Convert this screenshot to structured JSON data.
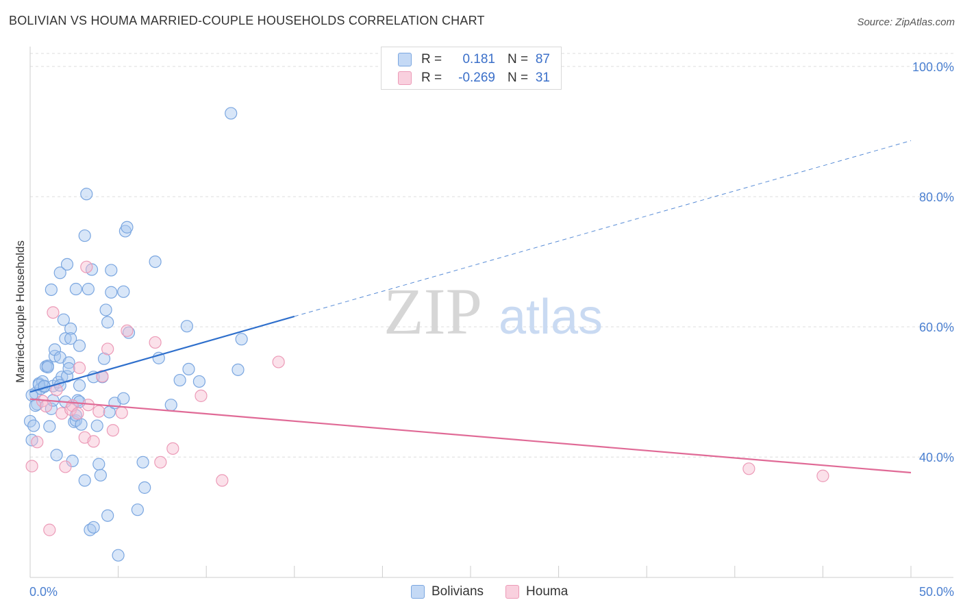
{
  "header": {
    "title": "BOLIVIAN VS HOUMA MARRIED-COUPLE HOUSEHOLDS CORRELATION CHART",
    "source": "Source: ZipAtlas.com"
  },
  "legend": {
    "rows": [
      {
        "r_label": "R =",
        "r_value": "0.181",
        "n_label": "N =",
        "n_value": "87"
      },
      {
        "r_label": "R =",
        "r_value": "-0.269",
        "n_label": "N =",
        "n_value": "31"
      }
    ]
  },
  "bottom_legend": {
    "items": [
      "Bolivians",
      "Houma"
    ]
  },
  "watermark": {
    "zip": "ZIP",
    "atlas": "atlas"
  },
  "colors": {
    "bolivians_fill": "#a9c8f0",
    "bolivians_stroke": "#7aa6e0",
    "bolivians_line": "#2e6fcc",
    "houma_fill": "#f6bcd0",
    "houma_stroke": "#ec9ab7",
    "houma_line": "#e06a96",
    "grid": "#dddddd",
    "tick_text": "#4a7fd0"
  },
  "chart_data": {
    "type": "scatter",
    "title": "BOLIVIAN VS HOUMA MARRIED-COUPLE HOUSEHOLDS CORRELATION CHART",
    "xlabel": "",
    "ylabel": "Married-couple Households",
    "xlim": [
      0,
      50
    ],
    "ylim": [
      21.5,
      102
    ],
    "x_tick_labels": [
      "0.0%",
      "50.0%"
    ],
    "y_ticks": [
      40,
      60,
      80,
      100
    ],
    "y_tick_labels": [
      "40.0%",
      "60.0%",
      "80.0%",
      "100.0%"
    ],
    "grid": true,
    "series": [
      {
        "name": "Bolivians",
        "r": 0.181,
        "n": 87,
        "trend": {
          "x0": 0,
          "y0": 50.0,
          "x1": 15.0,
          "y1": 61.6,
          "dashed_to_x": 50,
          "dashed_to_y": 88.6
        },
        "points": [
          [
            0.0,
            45.5
          ],
          [
            0.1,
            42.6
          ],
          [
            0.2,
            44.8
          ],
          [
            0.3,
            49.8
          ],
          [
            0.4,
            48.1
          ],
          [
            0.5,
            51.3
          ],
          [
            0.6,
            50.5
          ],
          [
            0.7,
            51.6
          ],
          [
            0.8,
            50.8
          ],
          [
            0.9,
            53.9
          ],
          [
            1.0,
            54.0
          ],
          [
            1.1,
            44.7
          ],
          [
            1.2,
            47.4
          ],
          [
            1.2,
            65.7
          ],
          [
            1.3,
            50.9
          ],
          [
            1.4,
            55.5
          ],
          [
            1.4,
            56.5
          ],
          [
            1.5,
            40.3
          ],
          [
            1.6,
            51.5
          ],
          [
            1.7,
            55.3
          ],
          [
            1.7,
            68.3
          ],
          [
            1.8,
            52.3
          ],
          [
            1.9,
            61.1
          ],
          [
            2.0,
            58.2
          ],
          [
            2.0,
            48.5
          ],
          [
            2.1,
            69.6
          ],
          [
            2.1,
            52.4
          ],
          [
            2.2,
            54.5
          ],
          [
            2.2,
            53.6
          ],
          [
            2.3,
            59.7
          ],
          [
            2.3,
            58.2
          ],
          [
            2.4,
            39.4
          ],
          [
            2.5,
            45.4
          ],
          [
            2.6,
            45.6
          ],
          [
            2.6,
            46.4
          ],
          [
            2.6,
            65.8
          ],
          [
            2.7,
            48.7
          ],
          [
            2.8,
            48.5
          ],
          [
            2.8,
            51.0
          ],
          [
            2.8,
            57.1
          ],
          [
            2.9,
            45.0
          ],
          [
            3.1,
            74.0
          ],
          [
            3.1,
            36.4
          ],
          [
            3.2,
            80.4
          ],
          [
            3.3,
            65.8
          ],
          [
            3.4,
            28.8
          ],
          [
            3.5,
            68.8
          ],
          [
            3.6,
            52.3
          ],
          [
            3.6,
            29.2
          ],
          [
            3.8,
            44.8
          ],
          [
            3.9,
            38.9
          ],
          [
            4.0,
            37.2
          ],
          [
            4.1,
            52.3
          ],
          [
            4.2,
            55.1
          ],
          [
            4.3,
            62.6
          ],
          [
            4.4,
            31.0
          ],
          [
            4.4,
            60.7
          ],
          [
            4.5,
            46.9
          ],
          [
            4.6,
            65.3
          ],
          [
            4.6,
            68.7
          ],
          [
            4.8,
            48.3
          ],
          [
            5.0,
            24.9
          ],
          [
            5.3,
            65.4
          ],
          [
            5.3,
            49.0
          ],
          [
            5.4,
            74.7
          ],
          [
            5.5,
            75.3
          ],
          [
            5.6,
            59.1
          ],
          [
            6.1,
            31.9
          ],
          [
            6.4,
            39.2
          ],
          [
            6.5,
            35.3
          ],
          [
            7.1,
            70.0
          ],
          [
            7.3,
            55.2
          ],
          [
            8.0,
            48.0
          ],
          [
            8.5,
            51.8
          ],
          [
            8.9,
            60.1
          ],
          [
            9.0,
            53.5
          ],
          [
            9.6,
            51.6
          ],
          [
            11.4,
            92.8
          ],
          [
            11.8,
            53.4
          ],
          [
            12.0,
            58.1
          ],
          [
            0.1,
            49.5
          ],
          [
            0.3,
            47.9
          ],
          [
            0.5,
            51.1
          ],
          [
            0.8,
            50.9
          ],
          [
            1.0,
            53.8
          ],
          [
            1.3,
            48.7
          ],
          [
            1.7,
            51.0
          ]
        ]
      },
      {
        "name": "Houma",
        "r": -0.269,
        "n": 31,
        "trend": {
          "x0": 0,
          "y0": 48.9,
          "x1": 50,
          "y1": 37.6
        },
        "points": [
          [
            0.1,
            38.6
          ],
          [
            0.4,
            42.3
          ],
          [
            0.7,
            48.6
          ],
          [
            0.9,
            47.8
          ],
          [
            1.1,
            28.8
          ],
          [
            1.3,
            62.2
          ],
          [
            1.5,
            50.3
          ],
          [
            1.8,
            46.7
          ],
          [
            2.0,
            38.5
          ],
          [
            2.3,
            47.3
          ],
          [
            2.4,
            47.9
          ],
          [
            2.7,
            46.7
          ],
          [
            2.8,
            53.7
          ],
          [
            3.1,
            43.0
          ],
          [
            3.2,
            69.2
          ],
          [
            3.3,
            48.0
          ],
          [
            3.6,
            42.4
          ],
          [
            3.9,
            47.0
          ],
          [
            4.1,
            52.4
          ],
          [
            4.4,
            56.6
          ],
          [
            4.7,
            44.1
          ],
          [
            5.2,
            46.8
          ],
          [
            5.5,
            59.4
          ],
          [
            7.1,
            57.6
          ],
          [
            7.4,
            39.2
          ],
          [
            8.1,
            41.3
          ],
          [
            9.7,
            49.4
          ],
          [
            10.9,
            36.4
          ],
          [
            14.1,
            54.6
          ],
          [
            40.8,
            38.2
          ],
          [
            45.0,
            37.1
          ]
        ]
      }
    ]
  }
}
